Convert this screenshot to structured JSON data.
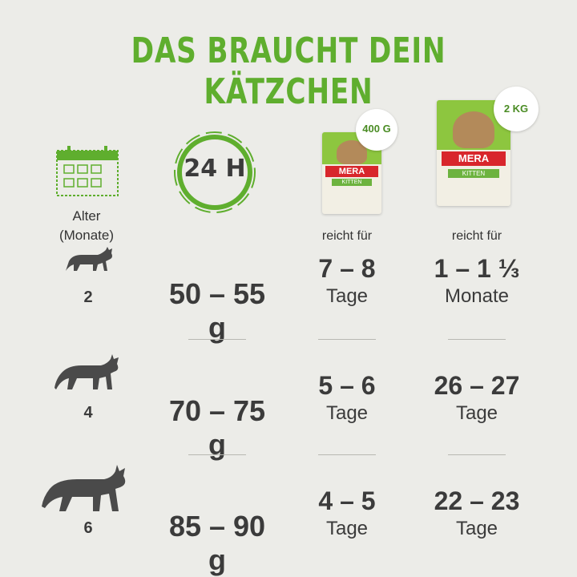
{
  "title": "DAS BRAUCHT DEIN KÄTZCHEN",
  "header": {
    "age_label_line1": "Alter",
    "age_label_line2": "(Monate)",
    "period_badge": "24 H",
    "product_small": {
      "size": "400 G",
      "brand": "MERA",
      "variant": "KITTEN"
    },
    "product_large": {
      "size": "2 KG",
      "brand": "MERA",
      "variant": "KITTEN"
    },
    "reicht_fuer": "reicht für"
  },
  "rows": [
    {
      "age": "2",
      "grams": "50 – 55 g",
      "small_value": "7 – 8",
      "small_unit": "Tage",
      "large_value": "1 – 1 ⅓",
      "large_unit": "Monate"
    },
    {
      "age": "4",
      "grams": "70 – 75 g",
      "small_value": "5 – 6",
      "small_unit": "Tage",
      "large_value": "26 – 27",
      "large_unit": "Tage"
    },
    {
      "age": "6",
      "grams": "85 – 90 g",
      "small_value": "4 – 5",
      "small_unit": "Tage",
      "large_value": "22 – 23",
      "large_unit": "Tage"
    }
  ],
  "colors": {
    "accent": "#5fae2e",
    "text": "#3b3b3b",
    "cat": "#4a4a4a",
    "bag_red": "#d8262c",
    "bag_green": "#8dc63f"
  }
}
